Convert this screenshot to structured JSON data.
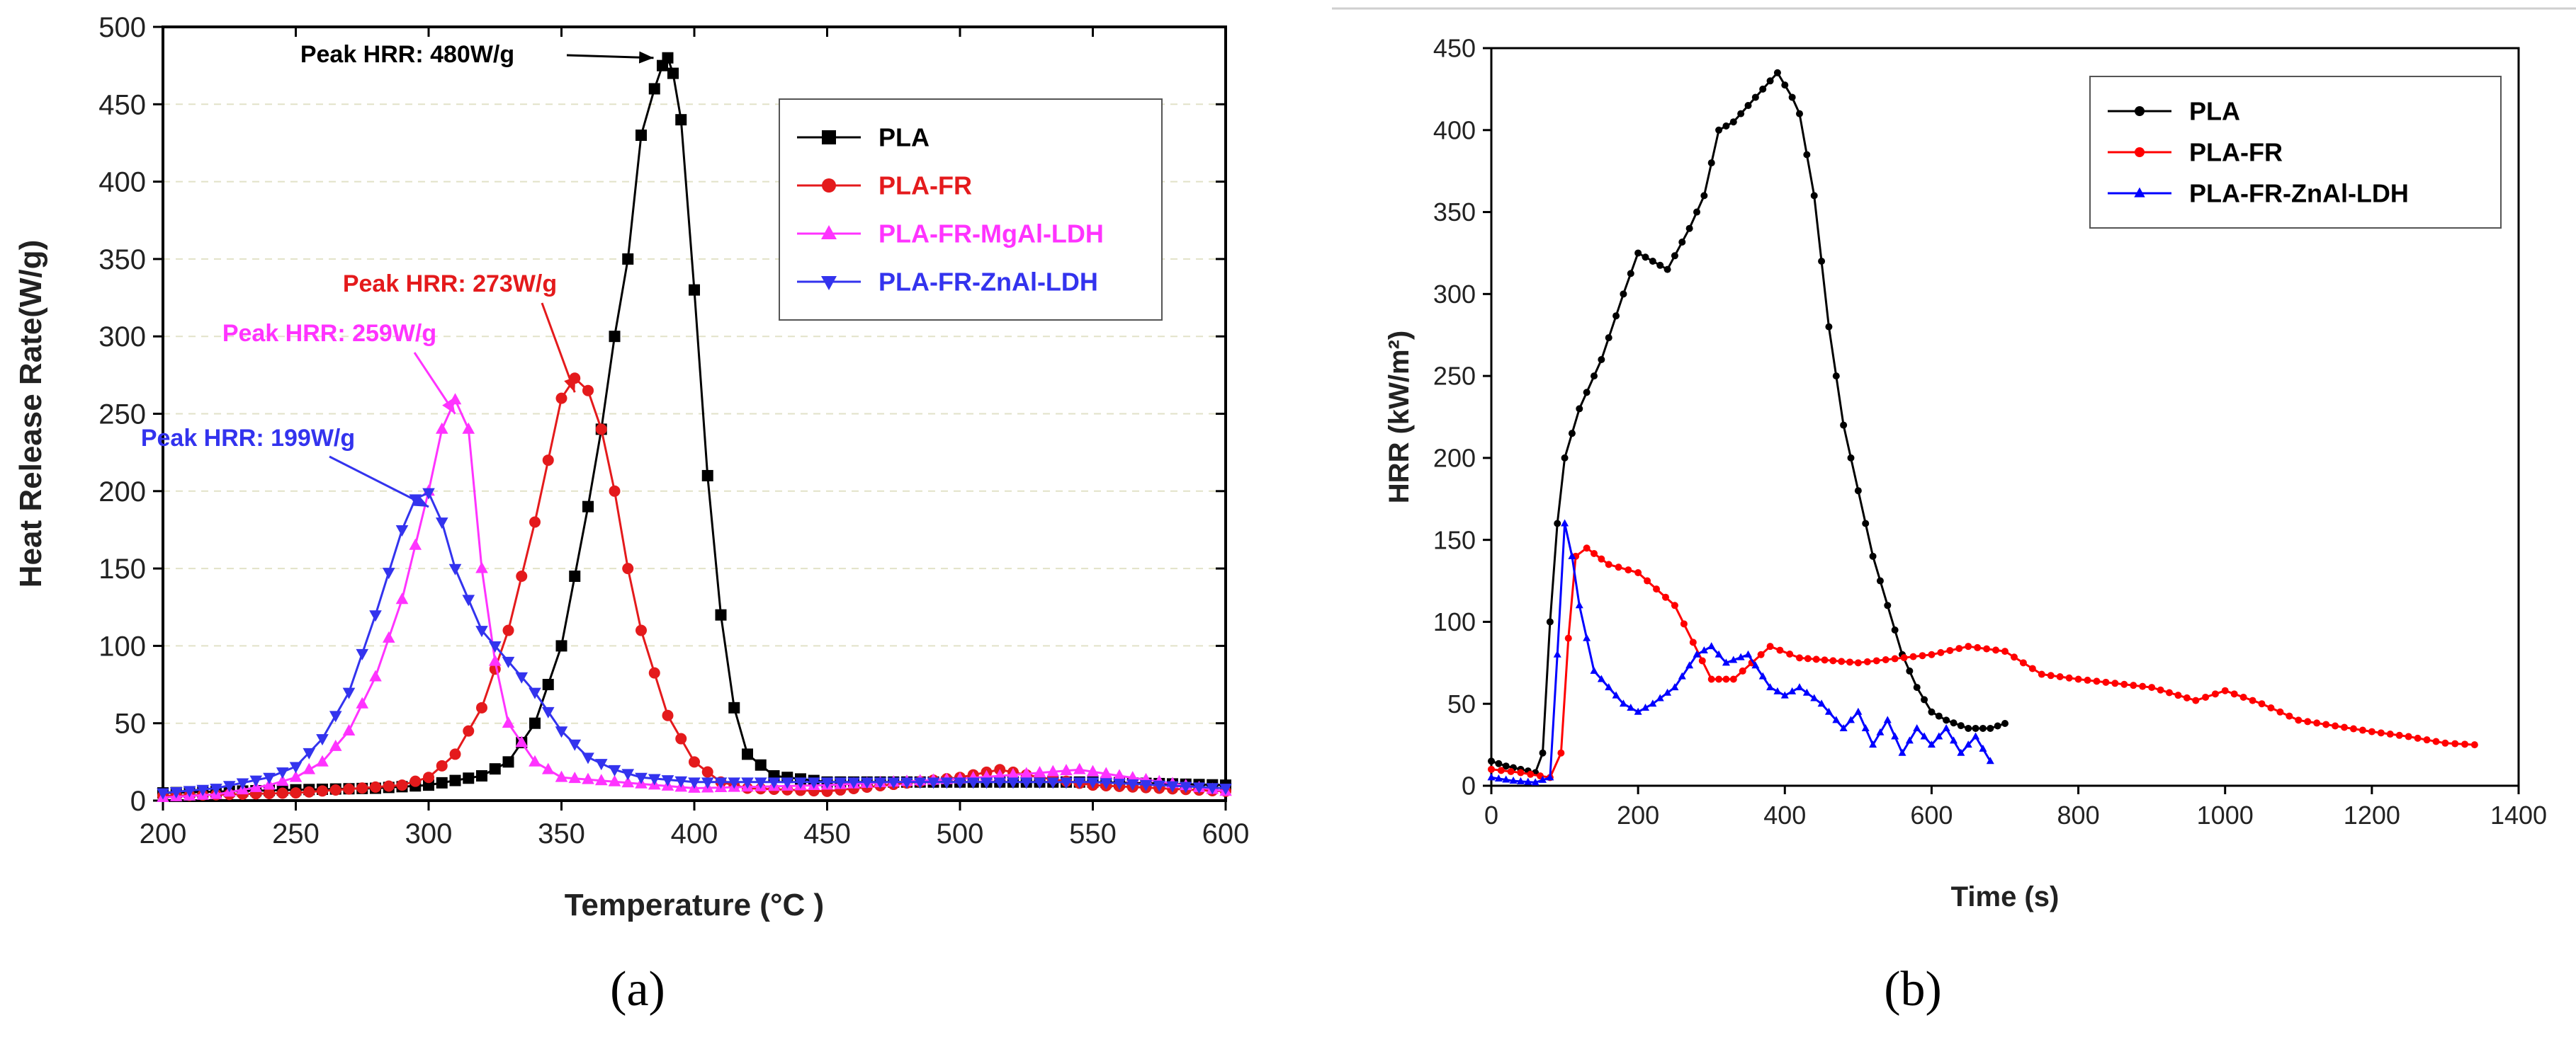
{
  "panels": [
    {
      "caption": "(a)",
      "chart_data": {
        "type": "line",
        "title": "",
        "xlabel": "Temperature (°C )",
        "ylabel": "Heat Release Rate(W/g)",
        "xlim": [
          200,
          600
        ],
        "ylim": [
          0,
          500
        ],
        "xticks": [
          200,
          250,
          300,
          350,
          400,
          450,
          500,
          550,
          600
        ],
        "yticks": [
          0,
          50,
          100,
          150,
          200,
          250,
          300,
          350,
          400,
          450,
          500
        ],
        "grid": "horizontal-dashed",
        "legend_position": "top-right",
        "series": [
          {
            "name": "PLA",
            "color": "#000000",
            "marker": "square",
            "points": [
              [
                200,
                5
              ],
              [
                250,
                7
              ],
              [
                280,
                8
              ],
              [
                300,
                10
              ],
              [
                320,
                16
              ],
              [
                330,
                25
              ],
              [
                340,
                50
              ],
              [
                350,
                100
              ],
              [
                360,
                190
              ],
              [
                365,
                240
              ],
              [
                370,
                300
              ],
              [
                375,
                350
              ],
              [
                380,
                430
              ],
              [
                385,
                460
              ],
              [
                388,
                475
              ],
              [
                390,
                480
              ],
              [
                392,
                470
              ],
              [
                395,
                440
              ],
              [
                400,
                330
              ],
              [
                405,
                210
              ],
              [
                410,
                120
              ],
              [
                415,
                60
              ],
              [
                420,
                30
              ],
              [
                430,
                16
              ],
              [
                450,
                12
              ],
              [
                500,
                12
              ],
              [
                550,
                12
              ],
              [
                600,
                10
              ]
            ]
          },
          {
            "name": "PLA-FR",
            "color": "#e41a1c",
            "marker": "circle",
            "points": [
              [
                200,
                3
              ],
              [
                250,
                5
              ],
              [
                290,
                10
              ],
              [
                300,
                15
              ],
              [
                310,
                30
              ],
              [
                320,
                60
              ],
              [
                330,
                110
              ],
              [
                340,
                180
              ],
              [
                345,
                220
              ],
              [
                350,
                260
              ],
              [
                355,
                273
              ],
              [
                360,
                265
              ],
              [
                365,
                240
              ],
              [
                370,
                200
              ],
              [
                375,
                150
              ],
              [
                380,
                110
              ],
              [
                390,
                55
              ],
              [
                400,
                25
              ],
              [
                410,
                12
              ],
              [
                420,
                8
              ],
              [
                450,
                6
              ],
              [
                500,
                15
              ],
              [
                515,
                20
              ],
              [
                530,
                15
              ],
              [
                550,
                10
              ],
              [
                600,
                6
              ]
            ]
          },
          {
            "name": "PLA-FR-MgAl-LDH",
            "color": "#ff33ff",
            "marker": "triangle-up",
            "points": [
              [
                200,
                2
              ],
              [
                220,
                4
              ],
              [
                240,
                10
              ],
              [
                250,
                15
              ],
              [
                260,
                25
              ],
              [
                270,
                45
              ],
              [
                280,
                80
              ],
              [
                290,
                130
              ],
              [
                300,
                200
              ],
              [
                305,
                240
              ],
              [
                310,
                259
              ],
              [
                315,
                240
              ],
              [
                320,
                150
              ],
              [
                325,
                90
              ],
              [
                330,
                50
              ],
              [
                340,
                25
              ],
              [
                350,
                15
              ],
              [
                400,
                8
              ],
              [
                450,
                10
              ],
              [
                500,
                14
              ],
              [
                530,
                18
              ],
              [
                545,
                20
              ],
              [
                560,
                16
              ],
              [
                600,
                6
              ]
            ]
          },
          {
            "name": "PLA-FR-ZnAl-LDH",
            "color": "#3333ee",
            "marker": "triangle-down",
            "points": [
              [
                200,
                5
              ],
              [
                220,
                8
              ],
              [
                240,
                15
              ],
              [
                250,
                22
              ],
              [
                260,
                40
              ],
              [
                270,
                70
              ],
              [
                280,
                120
              ],
              [
                290,
                175
              ],
              [
                295,
                195
              ],
              [
                300,
                199
              ],
              [
                305,
                180
              ],
              [
                310,
                150
              ],
              [
                320,
                110
              ],
              [
                330,
                90
              ],
              [
                340,
                70
              ],
              [
                350,
                45
              ],
              [
                360,
                28
              ],
              [
                370,
                20
              ],
              [
                380,
                15
              ],
              [
                400,
                12
              ],
              [
                450,
                12
              ],
              [
                500,
                12
              ],
              [
                550,
                12
              ],
              [
                600,
                8
              ]
            ]
          }
        ],
        "annotations": [
          {
            "text": "Peak HRR: 480W/g",
            "color": "#000000",
            "x": 390,
            "y": 480
          },
          {
            "text": "Peak HRR: 273W/g",
            "color": "#e41a1c",
            "x": 355,
            "y": 273
          },
          {
            "text": "Peak HRR: 259W/g",
            "color": "#ff33ff",
            "x": 310,
            "y": 259
          },
          {
            "text": "Peak HRR: 199W/g",
            "color": "#3333ee",
            "x": 300,
            "y": 199
          }
        ]
      }
    },
    {
      "caption": "(b)",
      "chart_data": {
        "type": "line",
        "title": "",
        "xlabel": "Time (s)",
        "ylabel": "HRR  (kW/m²)",
        "xlim": [
          0,
          1400
        ],
        "ylim": [
          0,
          450
        ],
        "xticks": [
          0,
          200,
          400,
          600,
          800,
          1000,
          1200,
          1400
        ],
        "yticks": [
          0,
          50,
          100,
          150,
          200,
          250,
          300,
          350,
          400,
          450
        ],
        "grid": "none",
        "legend_position": "top-right",
        "series": [
          {
            "name": "PLA",
            "color": "#000000",
            "marker": "dot",
            "points": [
              [
                0,
                15
              ],
              [
                20,
                12
              ],
              [
                40,
                10
              ],
              [
                60,
                8
              ],
              [
                70,
                20
              ],
              [
                80,
                100
              ],
              [
                90,
                160
              ],
              [
                100,
                200
              ],
              [
                120,
                230
              ],
              [
                150,
                260
              ],
              [
                180,
                300
              ],
              [
                200,
                325
              ],
              [
                220,
                320
              ],
              [
                240,
                315
              ],
              [
                270,
                340
              ],
              [
                290,
                360
              ],
              [
                310,
                400
              ],
              [
                330,
                405
              ],
              [
                360,
                420
              ],
              [
                390,
                435
              ],
              [
                410,
                420
              ],
              [
                420,
                410
              ],
              [
                440,
                360
              ],
              [
                460,
                280
              ],
              [
                480,
                220
              ],
              [
                500,
                180
              ],
              [
                520,
                140
              ],
              [
                540,
                110
              ],
              [
                560,
                80
              ],
              [
                580,
                60
              ],
              [
                600,
                45
              ],
              [
                620,
                40
              ],
              [
                650,
                35
              ],
              [
                680,
                35
              ],
              [
                700,
                38
              ]
            ]
          },
          {
            "name": "PLA-FR",
            "color": "#ff0000",
            "marker": "dot",
            "points": [
              [
                0,
                10
              ],
              [
                40,
                8
              ],
              [
                80,
                5
              ],
              [
                95,
                20
              ],
              [
                105,
                90
              ],
              [
                115,
                140
              ],
              [
                130,
                145
              ],
              [
                160,
                135
              ],
              [
                200,
                130
              ],
              [
                250,
                110
              ],
              [
                300,
                65
              ],
              [
                330,
                65
              ],
              [
                380,
                85
              ],
              [
                420,
                78
              ],
              [
                500,
                75
              ],
              [
                600,
                80
              ],
              [
                650,
                85
              ],
              [
                700,
                82
              ],
              [
                750,
                68
              ],
              [
                800,
                65
              ],
              [
                900,
                60
              ],
              [
                960,
                52
              ],
              [
                1000,
                58
              ],
              [
                1050,
                50
              ],
              [
                1100,
                40
              ],
              [
                1200,
                33
              ],
              [
                1250,
                30
              ],
              [
                1300,
                26
              ],
              [
                1340,
                25
              ]
            ]
          },
          {
            "name": "PLA-FR-ZnAl-LDH",
            "color": "#0000ff",
            "marker": "triangle-up",
            "points": [
              [
                0,
                5
              ],
              [
                30,
                3
              ],
              [
                60,
                2
              ],
              [
                80,
                5
              ],
              [
                90,
                80
              ],
              [
                100,
                160
              ],
              [
                110,
                140
              ],
              [
                120,
                110
              ],
              [
                140,
                70
              ],
              [
                160,
                60
              ],
              [
                180,
                50
              ],
              [
                200,
                45
              ],
              [
                220,
                50
              ],
              [
                250,
                60
              ],
              [
                280,
                80
              ],
              [
                300,
                85
              ],
              [
                320,
                75
              ],
              [
                350,
                80
              ],
              [
                380,
                60
              ],
              [
                400,
                55
              ],
              [
                420,
                60
              ],
              [
                450,
                50
              ],
              [
                480,
                35
              ],
              [
                500,
                45
              ],
              [
                520,
                25
              ],
              [
                540,
                40
              ],
              [
                560,
                20
              ],
              [
                580,
                35
              ],
              [
                600,
                25
              ],
              [
                620,
                35
              ],
              [
                640,
                20
              ],
              [
                660,
                30
              ],
              [
                680,
                15
              ]
            ]
          }
        ]
      }
    }
  ]
}
